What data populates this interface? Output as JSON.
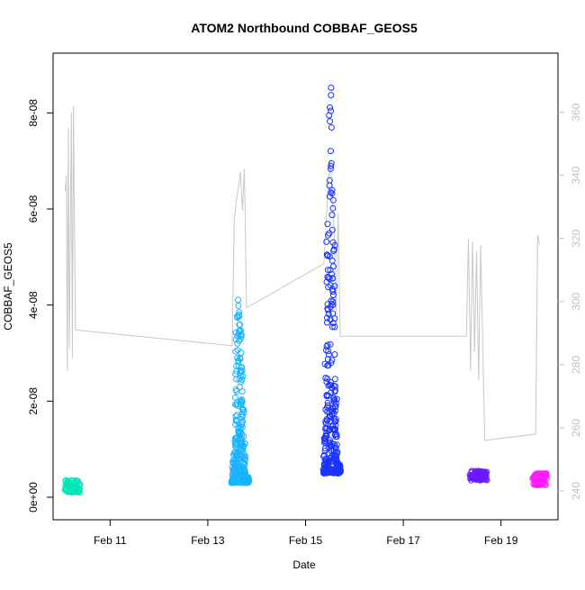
{
  "chart_data": {
    "type": "scatter",
    "title": "ATOM2 Northbound COBBAF_GEOS5",
    "xlabel": "Date",
    "ylabel": "COBBAF_GEOS5",
    "x_axis": {
      "type": "date",
      "min": "2016-02-10T00:00",
      "max": "2016-02-20T00:00",
      "ticks": [
        {
          "value": "2016-02-11T00:00",
          "label": "Feb 11"
        },
        {
          "value": "2016-02-13T00:00",
          "label": "Feb 13"
        },
        {
          "value": "2016-02-15T00:00",
          "label": "Feb 15"
        },
        {
          "value": "2016-02-17T00:00",
          "label": "Feb 17"
        },
        {
          "value": "2016-02-19T00:00",
          "label": "Feb 19"
        }
      ]
    },
    "y_axis_left": {
      "min": 0,
      "max": 9e-08,
      "ticks": [
        {
          "value": 0,
          "label": "0e+00"
        },
        {
          "value": 2e-08,
          "label": "2e-08"
        },
        {
          "value": 4e-08,
          "label": "4e-08"
        },
        {
          "value": 6e-08,
          "label": "6e-08"
        },
        {
          "value": 8e-08,
          "label": "8e-08"
        }
      ]
    },
    "y_axis_right": {
      "min": 238,
      "max": 375,
      "color": "#c0c0c0",
      "ticks": [
        {
          "value": 240,
          "label": "240"
        },
        {
          "value": 260,
          "label": "260"
        },
        {
          "value": 280,
          "label": "280"
        },
        {
          "value": 300,
          "label": "300"
        },
        {
          "value": 320,
          "label": "320"
        },
        {
          "value": 340,
          "label": "340"
        },
        {
          "value": 360,
          "label": "360"
        }
      ]
    },
    "scatter_groups": [
      {
        "color": "#00e6b8",
        "x_start": "2016-02-10T02:00",
        "x_end": "2016-02-10T09:00",
        "y_low": 1e-09,
        "y_base": 1.8e-09,
        "y_high": 3.5e-09
      },
      {
        "color": "#1ab2ff",
        "x_start": "2016-02-13T12:00",
        "x_end": "2016-02-13T20:00",
        "y_low": 2e-09,
        "y_base": 3e-09,
        "y_high": 4.4e-08
      },
      {
        "color": "#1a33ff",
        "x_start": "2016-02-15T09:00",
        "x_end": "2016-02-15T17:00",
        "y_low": 4e-09,
        "y_base": 5e-09,
        "y_high": 8.8e-08
      },
      {
        "color": "#6a1aff",
        "x_start": "2016-02-18T09:00",
        "x_end": "2016-02-18T17:00",
        "y_low": 3.5e-09,
        "y_base": 4.5e-09,
        "y_high": 5.5e-09
      },
      {
        "color": "#ff1aff",
        "x_start": "2016-02-19T16:00",
        "x_end": "2016-02-19T22:00",
        "y_low": 2.5e-09,
        "y_base": 3.5e-09,
        "y_high": 5e-09
      }
    ],
    "secondary_line": {
      "color": "#c8c8c8",
      "axis": "right",
      "points": [
        [
          "2016-02-10T02:00",
          335
        ],
        [
          "2016-02-10T02:30",
          340
        ],
        [
          "2016-02-10T03:00",
          278
        ],
        [
          "2016-02-10T03:30",
          355
        ],
        [
          "2016-02-10T04:00",
          285
        ],
        [
          "2016-02-10T05:00",
          360
        ],
        [
          "2016-02-10T05:30",
          282
        ],
        [
          "2016-02-10T06:00",
          362
        ],
        [
          "2016-02-10T07:00",
          291
        ],
        [
          "2016-02-13T12:00",
          286
        ],
        [
          "2016-02-13T13:00",
          326
        ],
        [
          "2016-02-13T14:00",
          332
        ],
        [
          "2016-02-13T15:00",
          336
        ],
        [
          "2016-02-13T16:00",
          341
        ],
        [
          "2016-02-13T17:00",
          329
        ],
        [
          "2016-02-13T18:00",
          342
        ],
        [
          "2016-02-13T19:00",
          298
        ],
        [
          "2016-02-15T09:00",
          312
        ],
        [
          "2016-02-15T10:00",
          324
        ],
        [
          "2016-02-15T11:00",
          335
        ],
        [
          "2016-02-15T12:00",
          345
        ],
        [
          "2016-02-15T13:00",
          336
        ],
        [
          "2016-02-15T14:00",
          322
        ],
        [
          "2016-02-15T15:00",
          296
        ],
        [
          "2016-02-15T16:00",
          328
        ],
        [
          "2016-02-15T17:00",
          289
        ],
        [
          "2016-02-18T07:00",
          289
        ],
        [
          "2016-02-18T08:00",
          320
        ],
        [
          "2016-02-18T09:00",
          278
        ],
        [
          "2016-02-18T10:00",
          319
        ],
        [
          "2016-02-18T11:00",
          284
        ],
        [
          "2016-02-18T12:00",
          316
        ],
        [
          "2016-02-18T13:00",
          275
        ],
        [
          "2016-02-18T14:00",
          318
        ],
        [
          "2016-02-18T16:00",
          256
        ],
        [
          "2016-02-19T17:00",
          258
        ],
        [
          "2016-02-19T18:00",
          321
        ],
        [
          "2016-02-19T19:00",
          318
        ]
      ]
    }
  }
}
